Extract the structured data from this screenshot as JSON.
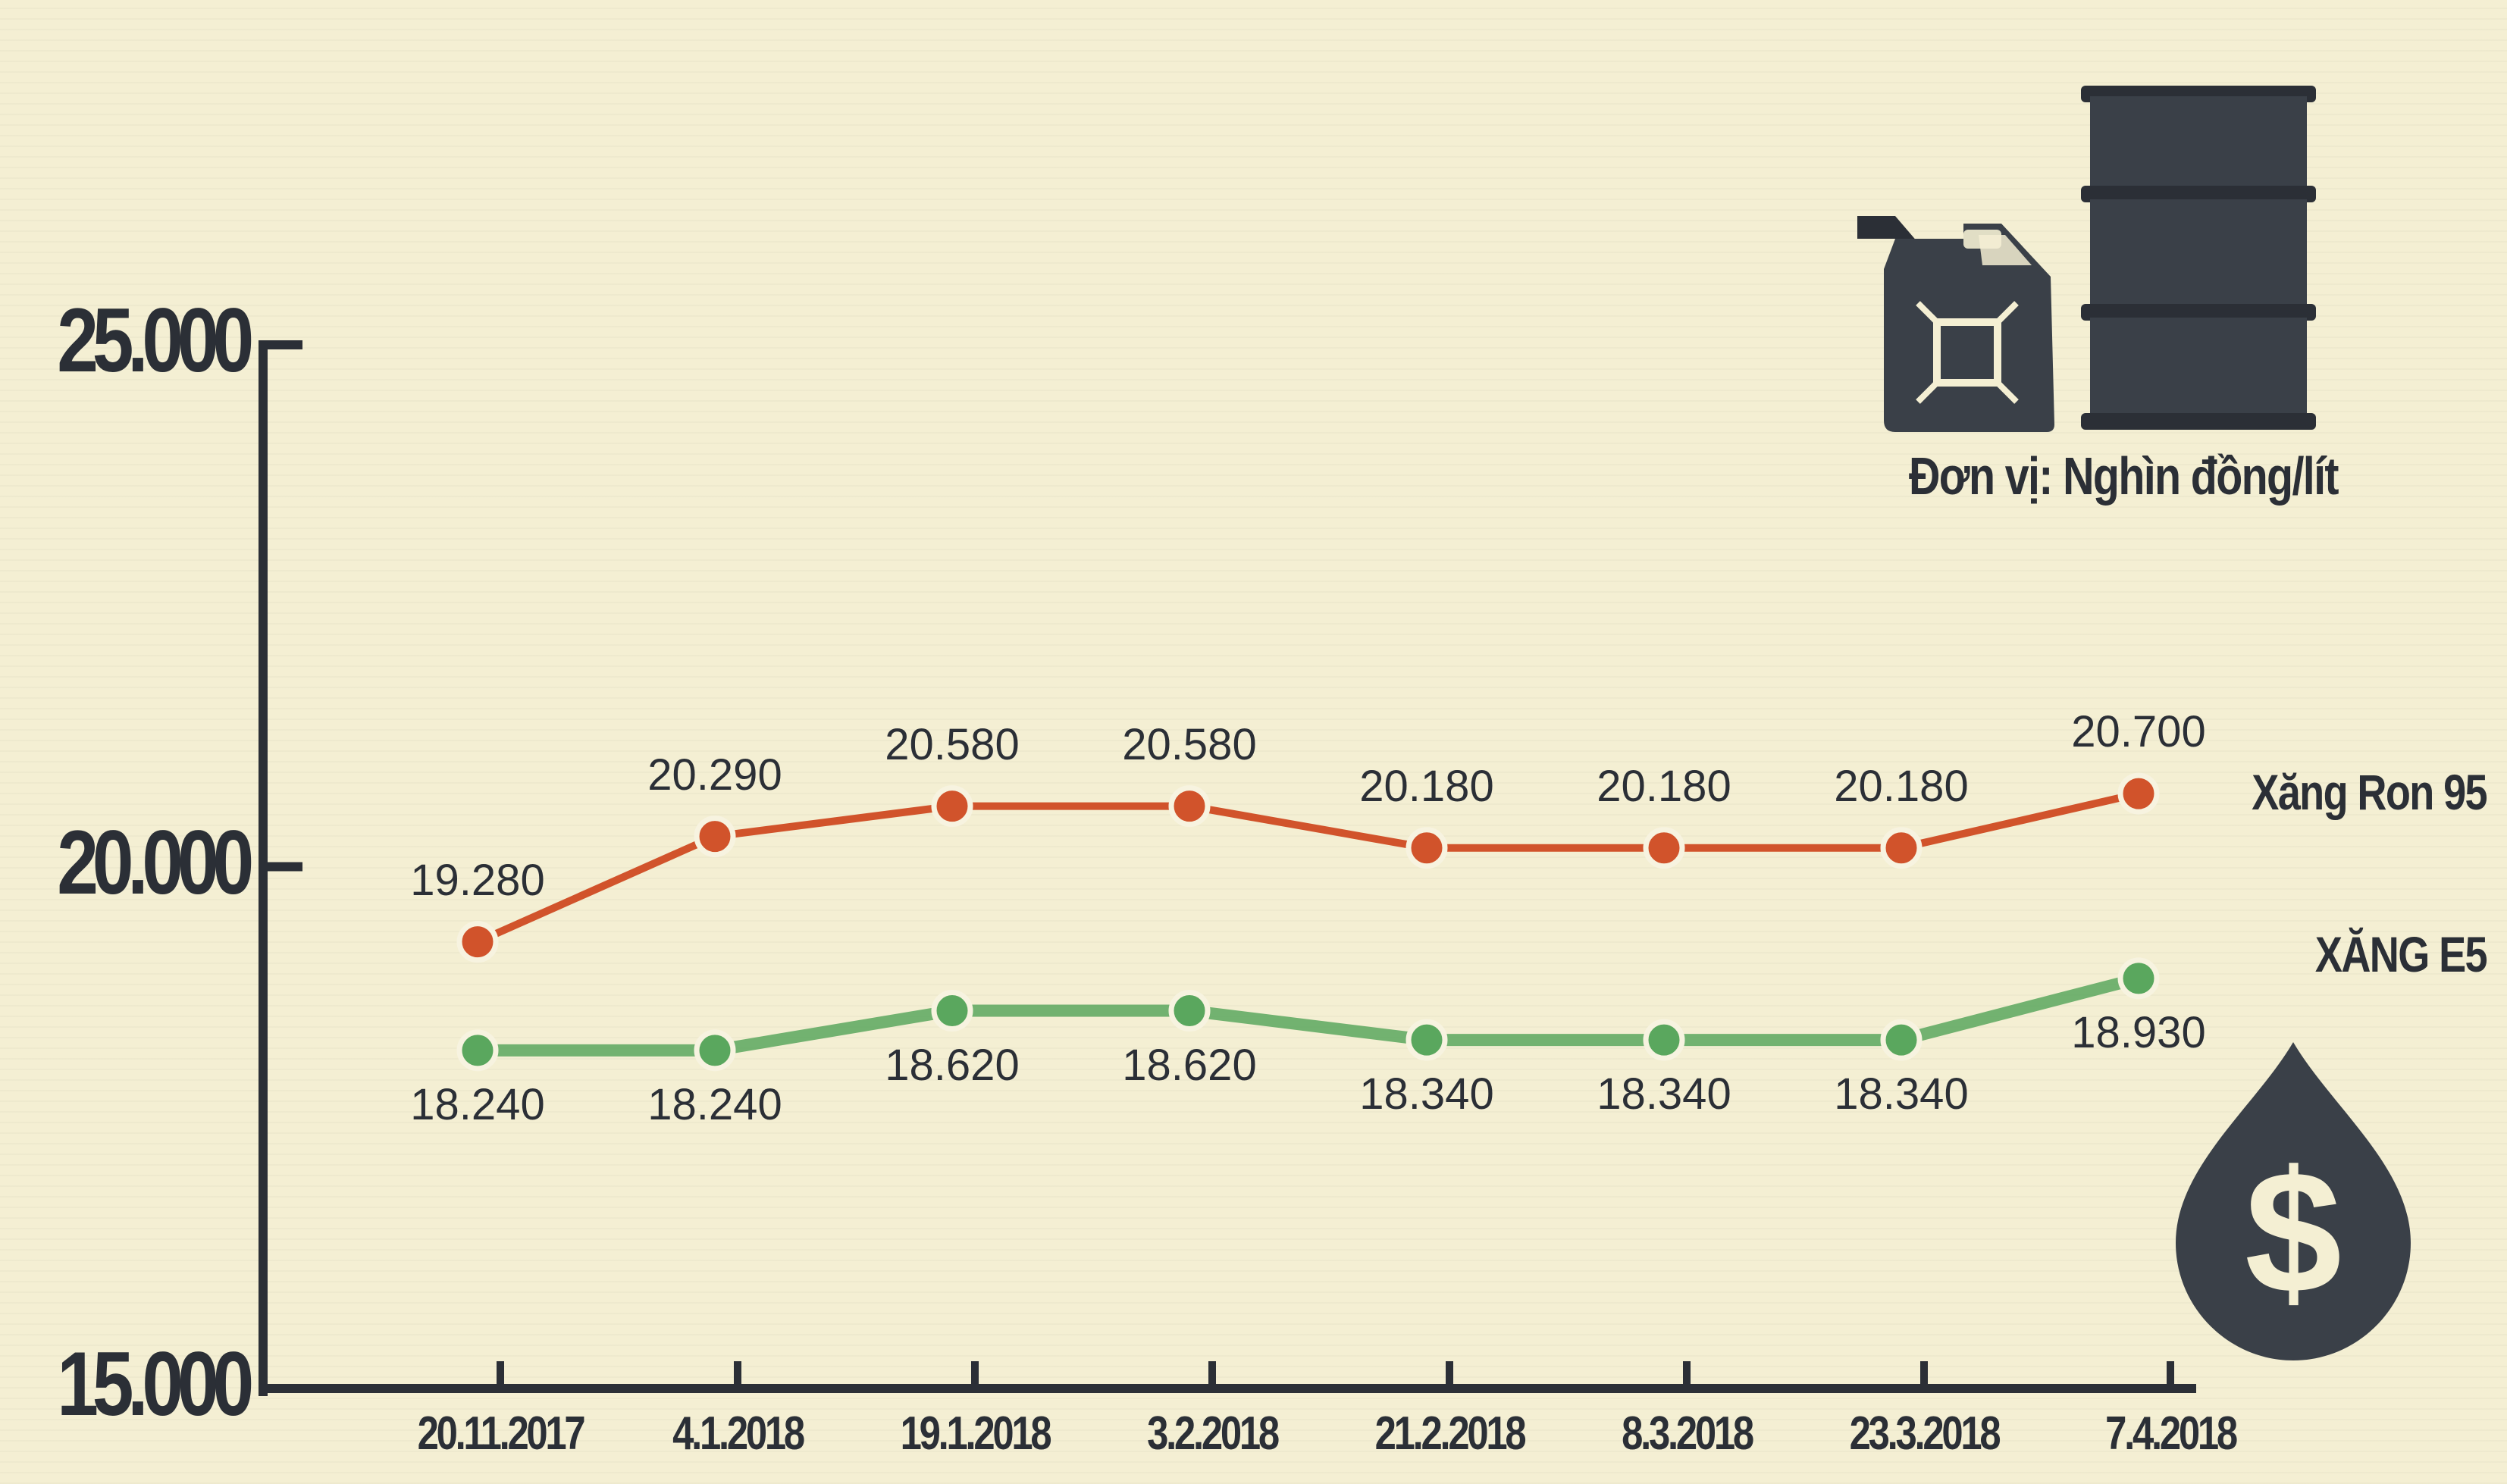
{
  "unit_label": "Đơn vị: Nghìn đồng/lít",
  "icons": [
    "jerrycan-icon",
    "oil-barrel-icon",
    "oil-drop-dollar-icon"
  ],
  "colors": {
    "ron95": "#d1532b",
    "e5": "#5aa75e",
    "ink": "#2b2f36",
    "background": "#f4efd3"
  },
  "chart_data": {
    "type": "line",
    "categories": [
      "20.11.2017",
      "4.1.2018",
      "19.1.2018",
      "3.2.2018",
      "21.2.2018",
      "8.3.2018",
      "23.3.2018",
      "7.4.2018"
    ],
    "ylim": [
      15000,
      25000
    ],
    "yticks": [
      {
        "value": 25000,
        "label": "25.000"
      },
      {
        "value": 20000,
        "label": "20.000"
      },
      {
        "value": 15000,
        "label": "15.000"
      }
    ],
    "series": [
      {
        "name": "Xăng Ron 95",
        "values": [
          19280,
          20290,
          20580,
          20580,
          20180,
          20180,
          20180,
          20700
        ],
        "labels": [
          "19.280",
          "20.290",
          "20.580",
          "20.580",
          "20.180",
          "20.180",
          "20.180",
          "20.700"
        ]
      },
      {
        "name": "XĂNG E5",
        "values": [
          18240,
          18240,
          18620,
          18620,
          18340,
          18340,
          18340,
          18930
        ],
        "labels": [
          "18.240",
          "18.240",
          "18.620",
          "18.620",
          "18.340",
          "18.340",
          "18.340",
          "18.930"
        ]
      }
    ]
  }
}
